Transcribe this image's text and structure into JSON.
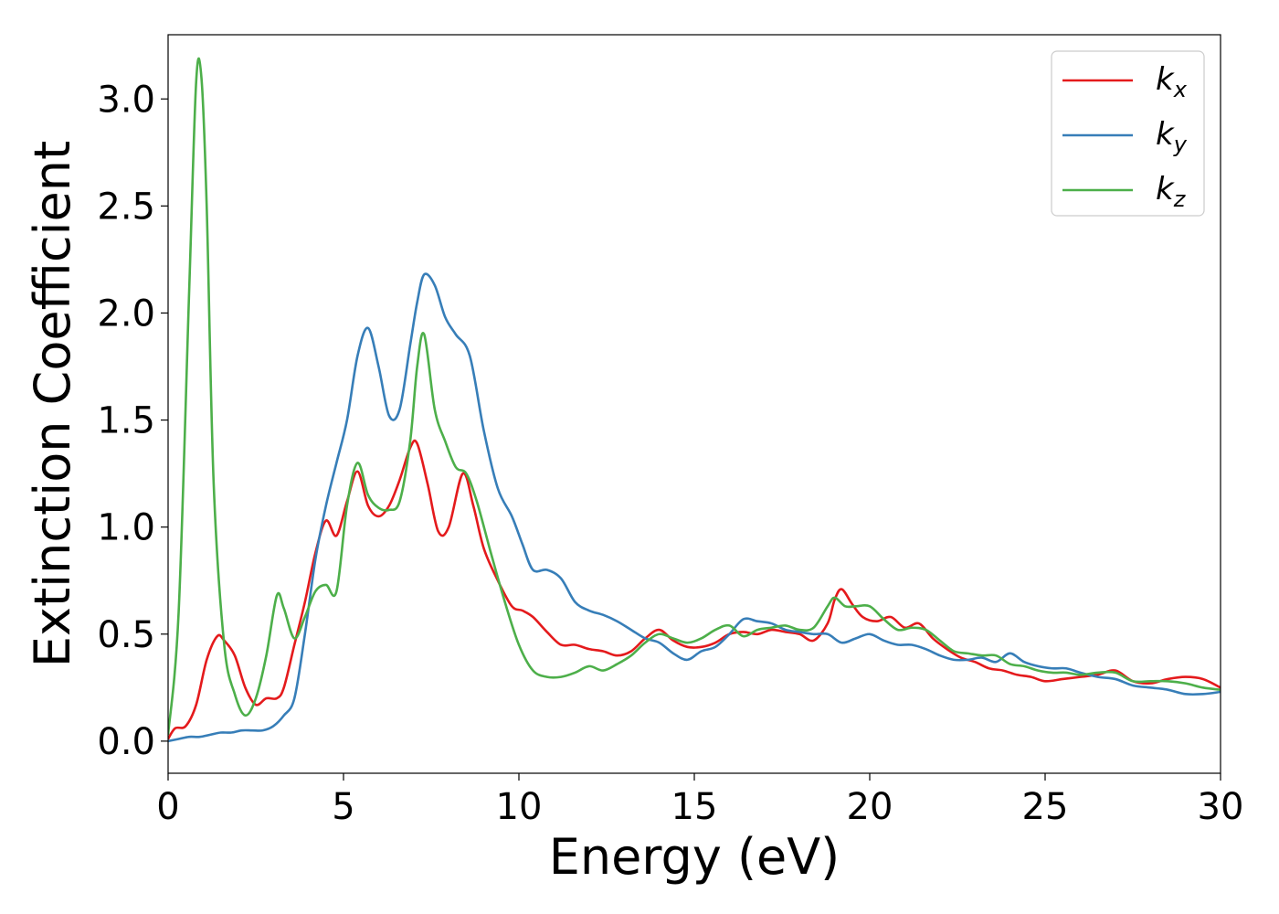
{
  "chart_data": {
    "type": "line",
    "title": "",
    "xlabel": "Energy (eV)",
    "ylabel": "Extinction Coefficient",
    "xlim": [
      0,
      30
    ],
    "ylim": [
      -0.15,
      3.3
    ],
    "xticks": [
      "0",
      "5",
      "10",
      "15",
      "20",
      "25",
      "30"
    ],
    "yticks": [
      "0.0",
      "0.5",
      "1.0",
      "1.5",
      "2.0",
      "2.5",
      "3.0"
    ],
    "grid": false,
    "legend_position": "top-right",
    "series": [
      {
        "name": "k_x",
        "label_main": "k",
        "label_sub": "x",
        "color": "#e41a1c",
        "x": [
          0,
          0.2,
          0.5,
          0.8,
          1.1,
          1.4,
          1.6,
          1.9,
          2.2,
          2.5,
          2.8,
          3.1,
          3.3,
          3.6,
          3.9,
          4.2,
          4.5,
          4.8,
          5.1,
          5.4,
          5.7,
          6.0,
          6.3,
          6.6,
          6.9,
          7.1,
          7.4,
          7.7,
          8.0,
          8.4,
          8.7,
          9.0,
          9.4,
          9.8,
          10.1,
          10.4,
          10.8,
          11.2,
          11.6,
          12.0,
          12.4,
          12.8,
          13.2,
          13.6,
          14.0,
          14.4,
          14.8,
          15.2,
          15.6,
          16.0,
          16.4,
          16.8,
          17.2,
          17.6,
          18.0,
          18.4,
          18.8,
          19.0,
          19.2,
          19.5,
          19.8,
          20.2,
          20.6,
          21.0,
          21.4,
          21.8,
          22.2,
          22.6,
          23.0,
          23.4,
          23.8,
          24.2,
          24.6,
          25.0,
          25.5,
          26.0,
          26.5,
          27.0,
          27.5,
          28.0,
          28.5,
          29.0,
          29.5,
          30.0
        ],
        "y": [
          0.01,
          0.06,
          0.07,
          0.17,
          0.38,
          0.49,
          0.47,
          0.4,
          0.25,
          0.17,
          0.2,
          0.2,
          0.25,
          0.45,
          0.65,
          0.88,
          1.03,
          0.96,
          1.12,
          1.26,
          1.1,
          1.05,
          1.1,
          1.22,
          1.37,
          1.39,
          1.2,
          0.98,
          1.0,
          1.25,
          1.1,
          0.9,
          0.75,
          0.63,
          0.61,
          0.58,
          0.51,
          0.45,
          0.45,
          0.43,
          0.42,
          0.4,
          0.42,
          0.48,
          0.52,
          0.47,
          0.44,
          0.44,
          0.46,
          0.5,
          0.51,
          0.5,
          0.52,
          0.51,
          0.5,
          0.47,
          0.55,
          0.66,
          0.71,
          0.64,
          0.58,
          0.56,
          0.58,
          0.53,
          0.55,
          0.48,
          0.43,
          0.39,
          0.37,
          0.34,
          0.33,
          0.31,
          0.3,
          0.28,
          0.29,
          0.3,
          0.31,
          0.33,
          0.28,
          0.27,
          0.29,
          0.3,
          0.29,
          0.25
        ]
      },
      {
        "name": "k_y",
        "label_main": "k",
        "label_sub": "y",
        "color": "#377eb8",
        "x": [
          0,
          0.3,
          0.6,
          0.9,
          1.2,
          1.5,
          1.8,
          2.1,
          2.4,
          2.7,
          3.0,
          3.3,
          3.6,
          3.9,
          4.2,
          4.5,
          4.8,
          5.1,
          5.4,
          5.7,
          6.0,
          6.3,
          6.6,
          6.9,
          7.1,
          7.3,
          7.6,
          7.9,
          8.2,
          8.6,
          9.0,
          9.4,
          9.8,
          10.1,
          10.4,
          10.8,
          11.2,
          11.6,
          12.0,
          12.4,
          12.8,
          13.2,
          13.6,
          14.0,
          14.4,
          14.8,
          15.2,
          15.6,
          16.0,
          16.4,
          16.8,
          17.2,
          17.6,
          18.0,
          18.4,
          18.8,
          19.2,
          19.6,
          20.0,
          20.4,
          20.8,
          21.2,
          21.6,
          22.0,
          22.4,
          22.8,
          23.2,
          23.6,
          24.0,
          24.4,
          24.8,
          25.2,
          25.6,
          26.0,
          26.5,
          27.0,
          27.5,
          28.0,
          28.5,
          29.0,
          29.5,
          30.0
        ],
        "y": [
          0.0,
          0.01,
          0.02,
          0.02,
          0.03,
          0.04,
          0.04,
          0.05,
          0.05,
          0.05,
          0.07,
          0.12,
          0.2,
          0.5,
          0.85,
          1.1,
          1.3,
          1.5,
          1.8,
          1.93,
          1.75,
          1.52,
          1.55,
          1.85,
          2.05,
          2.18,
          2.13,
          1.98,
          1.9,
          1.8,
          1.45,
          1.18,
          1.05,
          0.92,
          0.8,
          0.8,
          0.76,
          0.65,
          0.61,
          0.59,
          0.56,
          0.52,
          0.48,
          0.46,
          0.41,
          0.38,
          0.42,
          0.44,
          0.5,
          0.57,
          0.56,
          0.55,
          0.52,
          0.51,
          0.5,
          0.5,
          0.46,
          0.48,
          0.5,
          0.47,
          0.45,
          0.45,
          0.43,
          0.4,
          0.38,
          0.38,
          0.39,
          0.37,
          0.41,
          0.37,
          0.35,
          0.34,
          0.34,
          0.32,
          0.3,
          0.29,
          0.26,
          0.25,
          0.24,
          0.22,
          0.22,
          0.23
        ]
      },
      {
        "name": "k_z",
        "label_main": "k",
        "label_sub": "z",
        "color": "#4daf4a",
        "x": [
          0,
          0.3,
          0.6,
          0.8,
          0.95,
          1.1,
          1.3,
          1.6,
          1.9,
          2.2,
          2.5,
          2.8,
          3.1,
          3.3,
          3.6,
          3.9,
          4.2,
          4.5,
          4.8,
          5.1,
          5.4,
          5.7,
          6.0,
          6.3,
          6.6,
          6.9,
          7.1,
          7.3,
          7.6,
          7.9,
          8.2,
          8.5,
          8.8,
          9.2,
          9.6,
          10.0,
          10.4,
          10.8,
          11.2,
          11.6,
          12.0,
          12.4,
          12.8,
          13.2,
          13.6,
          14.0,
          14.4,
          14.8,
          15.2,
          15.6,
          16.0,
          16.4,
          16.8,
          17.2,
          17.6,
          18.0,
          18.4,
          18.8,
          19.0,
          19.3,
          19.6,
          20.0,
          20.4,
          20.8,
          21.2,
          21.6,
          22.0,
          22.4,
          22.8,
          23.2,
          23.6,
          24.0,
          24.4,
          24.8,
          25.2,
          25.6,
          26.0,
          26.5,
          27.0,
          27.5,
          28.0,
          28.5,
          29.0,
          29.5,
          30.0
        ],
        "y": [
          0.03,
          0.6,
          2.1,
          3.08,
          3.1,
          2.5,
          1.2,
          0.45,
          0.22,
          0.12,
          0.2,
          0.4,
          0.68,
          0.62,
          0.48,
          0.58,
          0.7,
          0.73,
          0.7,
          1.1,
          1.3,
          1.15,
          1.09,
          1.08,
          1.12,
          1.4,
          1.75,
          1.9,
          1.55,
          1.4,
          1.28,
          1.25,
          1.12,
          0.88,
          0.65,
          0.45,
          0.33,
          0.3,
          0.3,
          0.32,
          0.35,
          0.33,
          0.36,
          0.4,
          0.46,
          0.5,
          0.48,
          0.46,
          0.48,
          0.52,
          0.54,
          0.49,
          0.52,
          0.53,
          0.54,
          0.52,
          0.53,
          0.63,
          0.67,
          0.63,
          0.63,
          0.63,
          0.57,
          0.52,
          0.53,
          0.52,
          0.47,
          0.42,
          0.41,
          0.4,
          0.4,
          0.36,
          0.35,
          0.33,
          0.32,
          0.32,
          0.31,
          0.32,
          0.32,
          0.28,
          0.28,
          0.28,
          0.27,
          0.25,
          0.24
        ]
      }
    ]
  }
}
